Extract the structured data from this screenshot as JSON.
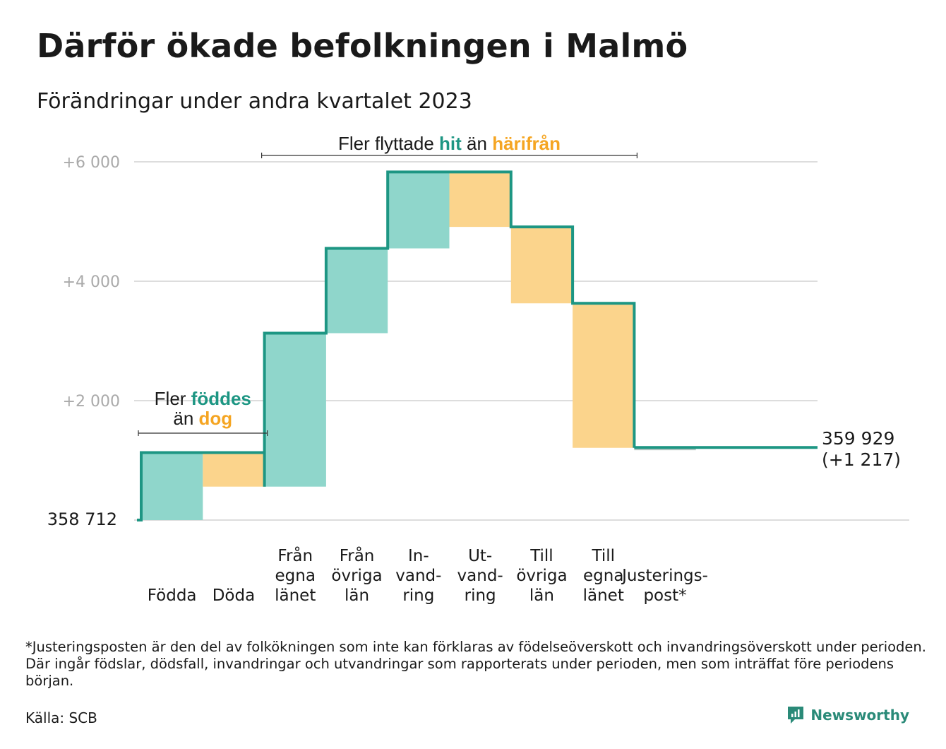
{
  "header": {
    "title": "Därför ökade befolkningen i Malmö",
    "subtitle": "Förändringar under andra kvartalet 2023"
  },
  "chart_data": {
    "type": "waterfall",
    "title": "Därför ökade befolkningen i Malmö",
    "subtitle": "Förändringar under andra kvartalet 2023",
    "start_value": 358712,
    "start_label": "358 712",
    "end_value": 359929,
    "end_label": "359 929",
    "end_change_label": "(+1 217)",
    "y_axis": {
      "unit": "change relative to start",
      "ylim": [
        0,
        6000
      ],
      "ticks": [
        {
          "value": 2000,
          "label": "+2 000"
        },
        {
          "value": 4000,
          "label": "+4 000"
        },
        {
          "value": 6000,
          "label": "+6 000"
        }
      ]
    },
    "grid": true,
    "steps": [
      {
        "category": [
          "Födda"
        ],
        "value": 1130,
        "kind": "inflow"
      },
      {
        "category": [
          "Döda"
        ],
        "value": -570,
        "kind": "outflow"
      },
      {
        "category": [
          "Från",
          "egna",
          "länet"
        ],
        "value": 2570,
        "kind": "inflow"
      },
      {
        "category": [
          "Från",
          "övriga",
          "län"
        ],
        "value": 1420,
        "kind": "inflow"
      },
      {
        "category": [
          "In-",
          "vand-",
          "ring"
        ],
        "value": 1280,
        "kind": "inflow"
      },
      {
        "category": [
          "Ut-",
          "vand-",
          "ring"
        ],
        "value": -920,
        "kind": "outflow"
      },
      {
        "category": [
          "Till",
          "övriga",
          "län"
        ],
        "value": -1280,
        "kind": "outflow"
      },
      {
        "category": [
          "Till",
          "egna",
          "länet"
        ],
        "value": -2420,
        "kind": "outflow"
      },
      {
        "category": [
          "Justerings-",
          "post*"
        ],
        "value": 7,
        "kind": "adjustment"
      }
    ],
    "annotations": [
      {
        "parts": [
          {
            "text": "Fler ",
            "style": "plain"
          },
          {
            "text": "föddes",
            "style": "in"
          }
        ],
        "parts2": [
          {
            "text": "än ",
            "style": "plain"
          },
          {
            "text": "dog",
            "style": "out"
          }
        ],
        "spans": [
          0,
          1
        ]
      },
      {
        "parts": [
          {
            "text": "Fler flyttade ",
            "style": "plain"
          },
          {
            "text": "hit",
            "style": "in"
          },
          {
            "text": "  än ",
            "style": "plain"
          },
          {
            "text": "härifrån",
            "style": "out"
          }
        ],
        "spans": [
          2,
          7
        ]
      }
    ],
    "colors": {
      "inflow": "#8fd6cb",
      "outflow": "#fbd48c",
      "adjustment": "#b8c7c3",
      "line": "#1d9683",
      "in_text": "#1d9683",
      "out_text": "#f5a522",
      "grid": "#dddddd"
    }
  },
  "footer": {
    "footnote": "*Justeringsposten är den del av folkökningen som inte kan förklaras av födelseöverskott och invandringsöverskott under perioden. Där ingår födslar, dödsfall, invandringar och utvandringar som rapporterats under perioden, men som inträffat före periodens början.",
    "source": "Källa: SCB",
    "brand": "Newsworthy",
    "brand_icon": "newsworthy-logo-icon",
    "brand_color": "#2a8a78"
  }
}
